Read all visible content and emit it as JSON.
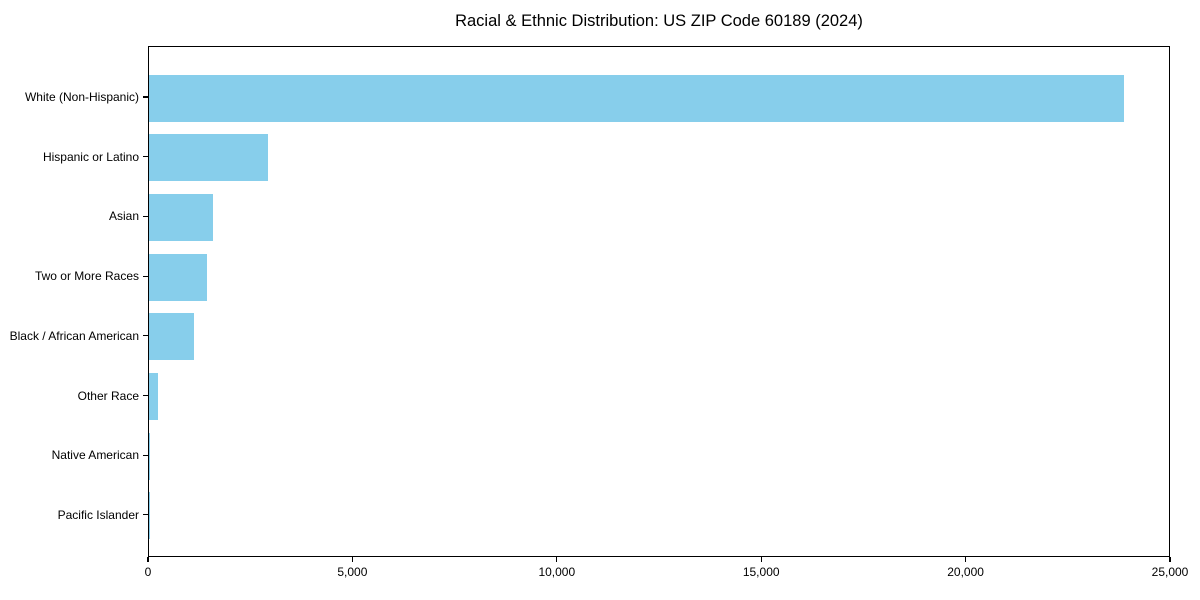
{
  "chart_data": {
    "type": "bar",
    "orientation": "horizontal",
    "title": "Racial & Ethnic Distribution: US ZIP Code 60189 (2024)",
    "categories": [
      "White (Non-Hispanic)",
      "Hispanic or Latino",
      "Asian",
      "Two or More Races",
      "Black / African American",
      "Other Race",
      "Native American",
      "Pacific Islander"
    ],
    "values": [
      23850,
      2900,
      1560,
      1420,
      1100,
      220,
      30,
      10
    ],
    "xlabel": "",
    "ylabel": "",
    "xlim": [
      0,
      25000
    ],
    "xticks": [
      0,
      5000,
      10000,
      15000,
      20000,
      25000
    ],
    "xtick_labels": [
      "0",
      "5,000",
      "10,000",
      "15,000",
      "20,000",
      "25,000"
    ],
    "bar_color": "#87CEEB",
    "text_color": "#000000",
    "grid": false,
    "legend": "none"
  }
}
